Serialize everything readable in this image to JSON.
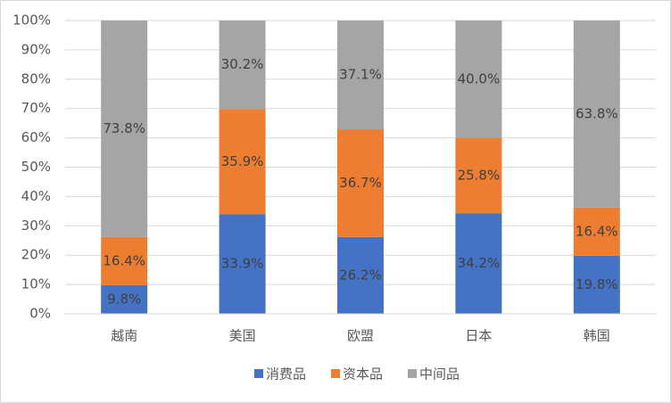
{
  "chart_data": {
    "type": "stacked-bar",
    "categories": [
      "越南",
      "美国",
      "欧盟",
      "日本",
      "韩国"
    ],
    "series": [
      {
        "name": "消费品",
        "color": "#4472c4",
        "values": [
          9.8,
          33.9,
          26.2,
          34.2,
          19.8
        ],
        "value_labels": [
          "9.8%",
          "33.9%",
          "26.2%",
          "34.2%",
          "19.8%"
        ]
      },
      {
        "name": "资本品",
        "color": "#ed7d31",
        "values": [
          16.4,
          35.9,
          36.7,
          25.8,
          16.4
        ],
        "value_labels": [
          "16.4%",
          "35.9%",
          "36.7%",
          "25.8%",
          "16.4%"
        ]
      },
      {
        "name": "中间品",
        "color": "#a5a5a5",
        "values": [
          73.8,
          30.2,
          37.1,
          40.0,
          63.8
        ],
        "value_labels": [
          "73.8%",
          "30.2%",
          "37.1%",
          "40.0%",
          "63.8%"
        ]
      }
    ],
    "ylim": [
      0,
      100
    ],
    "yticks": [
      {
        "value": 0,
        "label": "0%"
      },
      {
        "value": 10,
        "label": "10%"
      },
      {
        "value": 20,
        "label": "20%"
      },
      {
        "value": 30,
        "label": "30%"
      },
      {
        "value": 40,
        "label": "40%"
      },
      {
        "value": 50,
        "label": "50%"
      },
      {
        "value": 60,
        "label": "60%"
      },
      {
        "value": 70,
        "label": "70%"
      },
      {
        "value": 80,
        "label": "80%"
      },
      {
        "value": 90,
        "label": "90%"
      },
      {
        "value": 100,
        "label": "100%"
      }
    ],
    "grid": true,
    "legend": "bottom"
  }
}
